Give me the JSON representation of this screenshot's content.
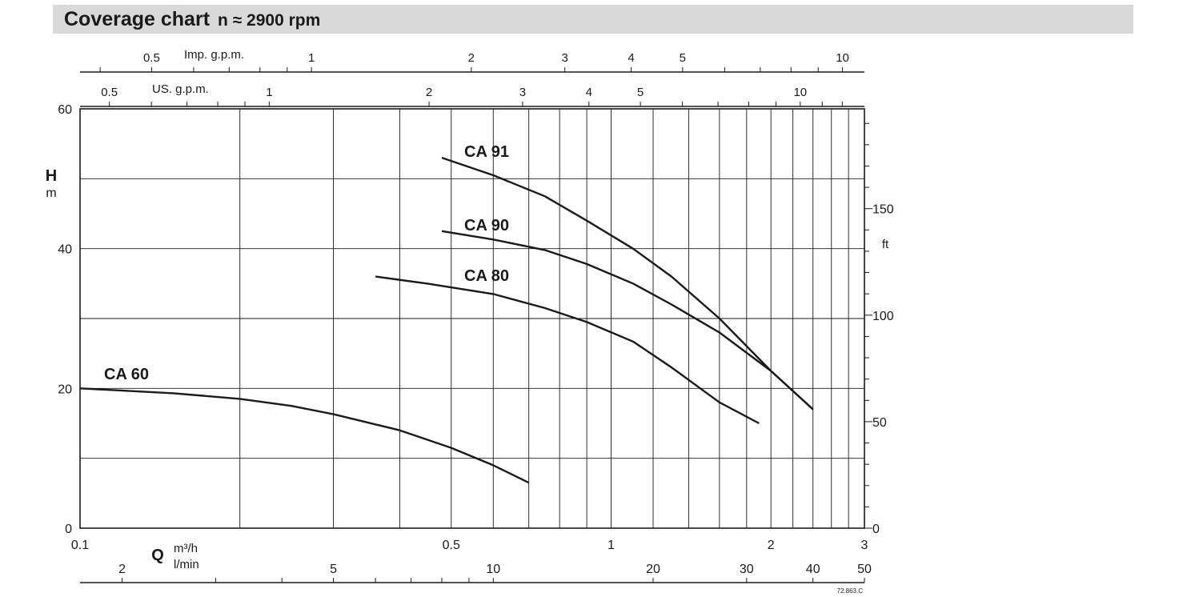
{
  "title": {
    "main": "Coverage chart",
    "sub": "n ≈ 2900 rpm"
  },
  "chart_data": {
    "type": "line",
    "x_scale": "log",
    "y_scale": "linear",
    "grid": true,
    "xlim": [
      0.1,
      3
    ],
    "ylim": [
      0,
      60
    ],
    "x_ticks": [
      "0.1",
      "0.5",
      "1",
      "2",
      "3"
    ],
    "y_ticks": [
      "0",
      "20",
      "40",
      "60"
    ],
    "xlabel": "Q",
    "xunit": "m³/h",
    "ylabel": "H",
    "yunit": "m",
    "secondary_axes": {
      "right": {
        "unit": "ft",
        "ticks": [
          "0",
          "50",
          "100",
          "150"
        ]
      },
      "top_imp": {
        "unit": "Imp. g.p.m.",
        "ticks": [
          "0.5",
          "1",
          "2",
          "3",
          "4",
          "5",
          "10"
        ]
      },
      "top_us": {
        "unit": "US. g.p.m.",
        "ticks": [
          "0.5",
          "1",
          "2",
          "3",
          "4",
          "5",
          "10"
        ]
      },
      "bottom_lmin": {
        "unit": "l/min",
        "ticks": [
          "2",
          "5",
          "10",
          "20",
          "30",
          "40",
          "50"
        ]
      }
    },
    "series": [
      {
        "name": "CA 91",
        "x": [
          0.48,
          0.6,
          0.75,
          0.9,
          1.1,
          1.3,
          1.6,
          2.0,
          2.4
        ],
        "y": [
          53,
          50.5,
          47.5,
          44,
          40,
          36,
          30,
          22.5,
          17
        ]
      },
      {
        "name": "CA 90",
        "x": [
          0.48,
          0.6,
          0.75,
          0.9,
          1.1,
          1.3,
          1.6,
          2.0,
          2.4
        ],
        "y": [
          42.5,
          41.3,
          39.8,
          37.8,
          35,
          32,
          28,
          22.5,
          17
        ]
      },
      {
        "name": "CA 80",
        "x": [
          0.36,
          0.45,
          0.6,
          0.75,
          0.9,
          1.1,
          1.3,
          1.6,
          1.9
        ],
        "y": [
          36,
          35,
          33.5,
          31.5,
          29.5,
          26.7,
          23,
          18,
          15
        ]
      },
      {
        "name": "CA 60",
        "x": [
          0.1,
          0.15,
          0.2,
          0.25,
          0.3,
          0.4,
          0.5,
          0.6,
          0.7
        ],
        "y": [
          20,
          19.3,
          18.5,
          17.5,
          16.3,
          14,
          11.5,
          9,
          6.5
        ]
      }
    ]
  },
  "footnote": "72.863.C"
}
